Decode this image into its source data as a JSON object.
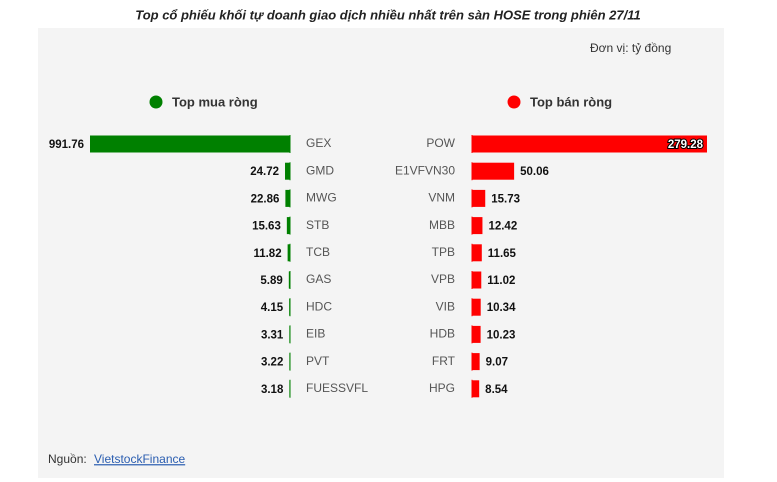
{
  "title": "Top cổ phiếu khối tự doanh giao dịch nhiều nhất trên sàn HOSE trong phiên 27/11",
  "unit": "Đơn vị: tỷ đồng",
  "source_label": "Nguồn:",
  "source_link": "VietstockFinance",
  "chart_data": [
    {
      "type": "bar",
      "categories": [
        "GEX",
        "GMD",
        "MWG",
        "STB",
        "TCB",
        "GAS",
        "HDC",
        "EIB",
        "PVT",
        "FUESSVFL"
      ],
      "series": [
        {
          "name": "Top mua ròng",
          "color": "#008000",
          "values": [
            991.76,
            24.72,
            22.86,
            15.63,
            11.82,
            5.89,
            4.15,
            3.31,
            3.22,
            3.18
          ]
        }
      ]
    },
    {
      "type": "bar",
      "categories": [
        "POW",
        "E1VFVN30",
        "VNM",
        "MBB",
        "TPB",
        "VPB",
        "VIB",
        "HDB",
        "FRT",
        "HPG"
      ],
      "series": [
        {
          "name": "Top bán ròng",
          "color": "#ff0000",
          "values": [
            279.28,
            50.06,
            15.73,
            12.42,
            11.65,
            11.02,
            10.34,
            10.23,
            9.07,
            8.54
          ]
        }
      ]
    }
  ]
}
